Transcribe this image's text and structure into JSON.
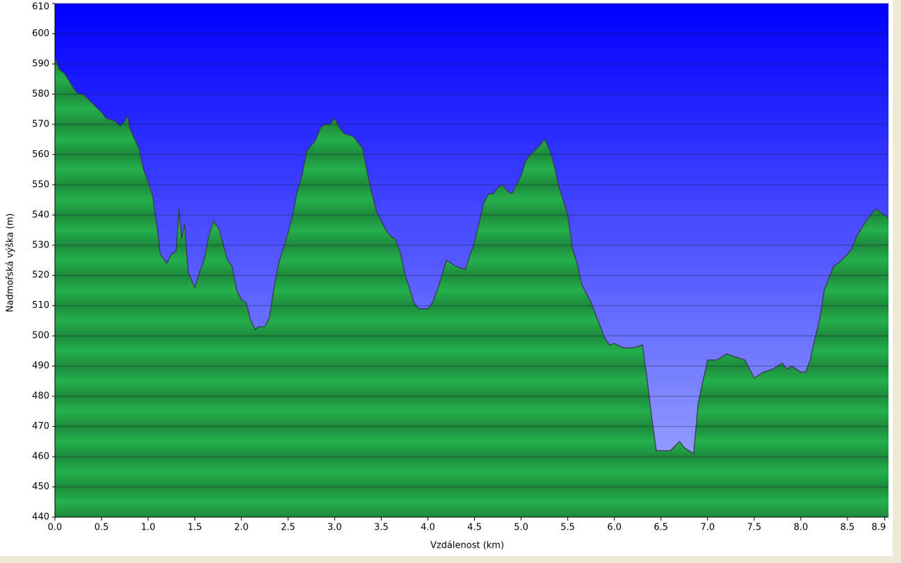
{
  "chart_data": {
    "type": "area",
    "xlabel": "Vzdálenost  (km)",
    "ylabel": "Nadmořská výška (m)",
    "color": "#22a84a",
    "xlim": [
      0,
      8.94
    ],
    "ylim": [
      440,
      610
    ],
    "xticks": [
      {
        "value": 0,
        "label": "0.0"
      },
      0.5,
      {
        "value": 1,
        "label": "1.0"
      },
      1.5,
      {
        "value": 2,
        "label": "2.0"
      },
      2.5,
      {
        "value": 3,
        "label": "3.0"
      },
      3.5,
      {
        "value": 4,
        "label": "4.0"
      },
      4.5,
      {
        "value": 5,
        "label": "5.0"
      },
      5.5,
      {
        "value": 6,
        "label": "6.0"
      },
      6.5,
      {
        "value": 7,
        "label": "7.0"
      },
      7.5,
      {
        "value": 8,
        "label": "8.0"
      },
      8.5,
      8.9
    ],
    "yticks": [
      440,
      450,
      460,
      470,
      480,
      490,
      500,
      510,
      520,
      530,
      540,
      550,
      560,
      570,
      580,
      590,
      600,
      610
    ],
    "grid": true,
    "x": [
      0,
      0.05,
      0.1,
      0.2,
      0.25,
      0.3,
      0.4,
      0.5,
      0.55,
      0.65,
      0.7,
      0.75,
      0.78,
      0.8,
      0.9,
      0.95,
      1.0,
      1.05,
      1.1,
      1.13,
      1.2,
      1.25,
      1.3,
      1.33,
      1.36,
      1.39,
      1.43,
      1.5,
      1.55,
      1.6,
      1.65,
      1.7,
      1.75,
      1.8,
      1.85,
      1.9,
      1.95,
      2.0,
      2.05,
      2.1,
      2.15,
      2.18,
      2.25,
      2.3,
      2.35,
      2.4,
      2.5,
      2.55,
      2.6,
      2.65,
      2.7,
      2.75,
      2.8,
      2.85,
      2.9,
      2.95,
      3.0,
      3.05,
      3.1,
      3.2,
      3.25,
      3.3,
      3.35,
      3.4,
      3.45,
      3.5,
      3.55,
      3.6,
      3.65,
      3.7,
      3.75,
      3.8,
      3.85,
      3.9,
      4.0,
      4.05,
      4.1,
      4.2,
      4.3,
      4.4,
      4.5,
      4.6,
      4.65,
      4.7,
      4.75,
      4.8,
      4.85,
      4.9,
      5.0,
      5.05,
      5.1,
      5.2,
      5.25,
      5.3,
      5.35,
      5.4,
      5.45,
      5.5,
      5.55,
      5.6,
      5.65,
      5.7,
      5.75,
      5.8,
      5.85,
      5.9,
      5.95,
      6.0,
      6.1,
      6.2,
      6.3,
      6.35,
      6.4,
      6.45,
      6.5,
      6.6,
      6.7,
      6.75,
      6.8,
      6.85,
      6.9,
      7.0,
      7.1,
      7.2,
      7.3,
      7.4,
      7.5,
      7.6,
      7.7,
      7.8,
      7.85,
      7.9,
      8.0,
      8.05,
      8.1,
      8.15,
      8.2,
      8.25,
      8.3,
      8.35,
      8.4,
      8.5,
      8.55,
      8.6,
      8.7,
      8.8,
      8.85,
      8.94
    ],
    "values": [
      592,
      588,
      587,
      582,
      580,
      580,
      577,
      574,
      572,
      571,
      569.5,
      571,
      573,
      569,
      562,
      555,
      551,
      546,
      535,
      527,
      524,
      527,
      528,
      542,
      532,
      537,
      521,
      516,
      521,
      525,
      533,
      538,
      536,
      531,
      525,
      523,
      515,
      512,
      511,
      505,
      502,
      503,
      503,
      506,
      516,
      524,
      534,
      540,
      548,
      553,
      561,
      563,
      565,
      569,
      570,
      570,
      572,
      569,
      567,
      566,
      564,
      562,
      554,
      547,
      541,
      538,
      535,
      533,
      532,
      528,
      521,
      516,
      511,
      509,
      509,
      511,
      515,
      525,
      523,
      522,
      531,
      544,
      547,
      547,
      549,
      550,
      548,
      547,
      553,
      558,
      560,
      563,
      565,
      562,
      557,
      550,
      545,
      540,
      529,
      524,
      517,
      514,
      511,
      507,
      503,
      499,
      497,
      497.5,
      496,
      496,
      497,
      486,
      473,
      462,
      462,
      462,
      465,
      463,
      462,
      461,
      478,
      492,
      492,
      494,
      493,
      492,
      486,
      488,
      489,
      491,
      489,
      490,
      488,
      488,
      492,
      499,
      505,
      515,
      519,
      523,
      524,
      527,
      529,
      533,
      538,
      542,
      541,
      539
    ]
  }
}
